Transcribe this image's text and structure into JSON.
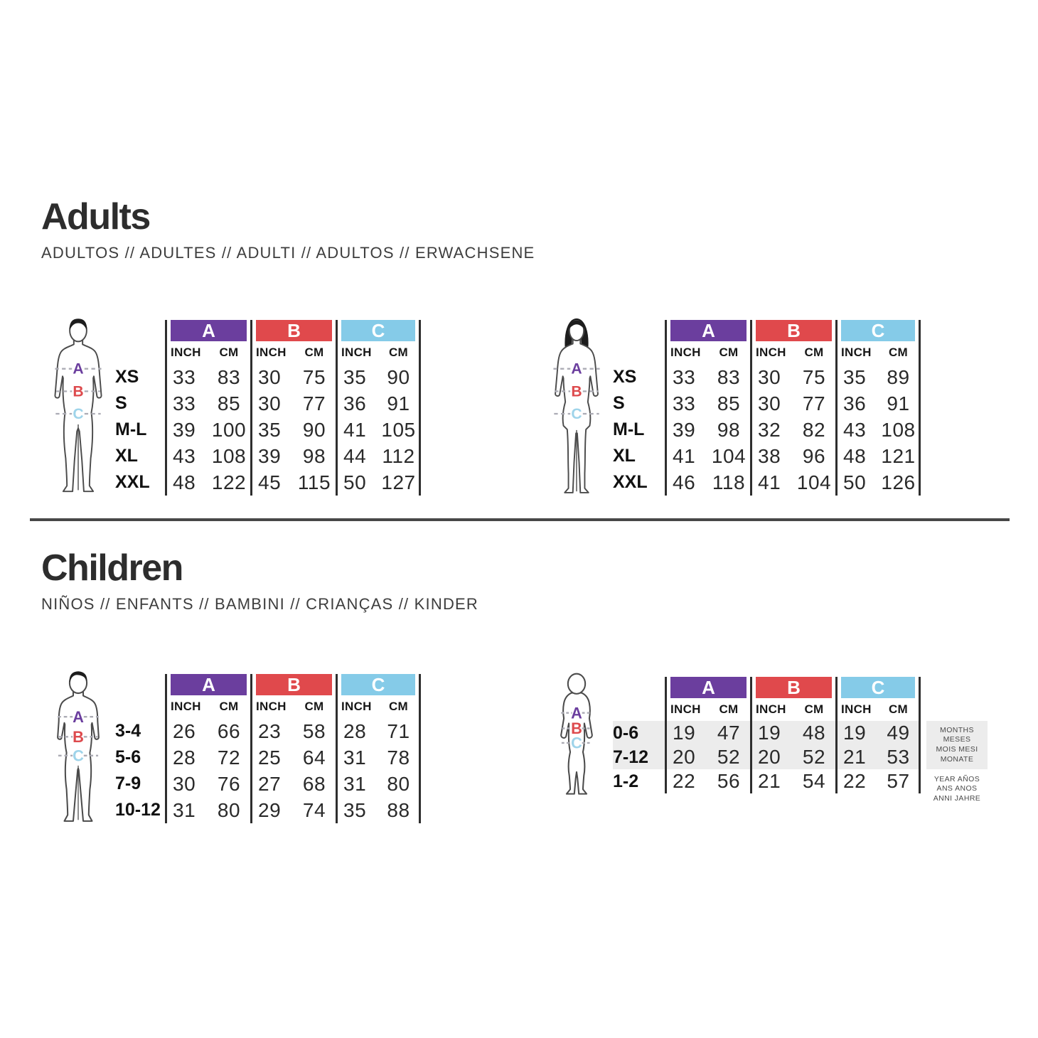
{
  "adults": {
    "title": "Adults",
    "subtitle": "ADULTOS // ADULTES // ADULTI // ADULTOS // ERWACHSENE",
    "tables": {
      "men": {
        "figure": "man",
        "rows": [
          {
            "size": "XS",
            "values": [
              "33",
              "83",
              "30",
              "75",
              "35",
              "90"
            ]
          },
          {
            "size": "S",
            "values": [
              "33",
              "85",
              "30",
              "77",
              "36",
              "91"
            ]
          },
          {
            "size": "M-L",
            "values": [
              "39",
              "100",
              "35",
              "90",
              "41",
              "105"
            ]
          },
          {
            "size": "XL",
            "values": [
              "43",
              "108",
              "39",
              "98",
              "44",
              "112"
            ]
          },
          {
            "size": "XXL",
            "values": [
              "48",
              "122",
              "45",
              "115",
              "50",
              "127"
            ]
          }
        ]
      },
      "women": {
        "figure": "woman",
        "rows": [
          {
            "size": "XS",
            "values": [
              "33",
              "83",
              "30",
              "75",
              "35",
              "89"
            ]
          },
          {
            "size": "S",
            "values": [
              "33",
              "85",
              "30",
              "77",
              "36",
              "91"
            ]
          },
          {
            "size": "M-L",
            "values": [
              "39",
              "98",
              "32",
              "82",
              "43",
              "108"
            ]
          },
          {
            "size": "XL",
            "values": [
              "41",
              "104",
              "38",
              "96",
              "48",
              "121"
            ]
          },
          {
            "size": "XXL",
            "values": [
              "46",
              "118",
              "41",
              "104",
              "50",
              "126"
            ]
          }
        ]
      }
    }
  },
  "children": {
    "title": "Children",
    "subtitle": "NIÑOS // ENFANTS // BAMBINI // CRIANÇAS // KINDER",
    "tables": {
      "child": {
        "figure": "child",
        "rows": [
          {
            "size": "3-4",
            "values": [
              "26",
              "66",
              "23",
              "58",
              "28",
              "71"
            ]
          },
          {
            "size": "5-6",
            "values": [
              "28",
              "72",
              "25",
              "64",
              "31",
              "78"
            ]
          },
          {
            "size": "7-9",
            "values": [
              "30",
              "76",
              "27",
              "68",
              "31",
              "80"
            ]
          },
          {
            "size": "10-12",
            "values": [
              "31",
              "80",
              "29",
              "74",
              "35",
              "88"
            ]
          }
        ]
      },
      "baby": {
        "figure": "baby",
        "rows": [
          {
            "size": "0-6",
            "values": [
              "19",
              "47",
              "19",
              "48",
              "19",
              "49"
            ],
            "highlight": true
          },
          {
            "size": "7-12",
            "values": [
              "20",
              "52",
              "20",
              "52",
              "21",
              "53"
            ],
            "highlight": true
          },
          {
            "size": "1-2",
            "values": [
              "22",
              "56",
              "21",
              "54",
              "22",
              "57"
            ],
            "highlight": false
          }
        ],
        "notes": {
          "months": [
            "MONTHS",
            "MESES",
            "MOIS MESI",
            "MONATE"
          ],
          "years": [
            "YEAR AÑOS",
            "ANS ANOS",
            "ANNI JAHRE"
          ]
        }
      }
    }
  },
  "columns": [
    {
      "key": "a",
      "label": "A",
      "color": "#6b3e9e"
    },
    {
      "key": "b",
      "label": "B",
      "color": "#e0494c"
    },
    {
      "key": "c",
      "label": "C",
      "color": "#85cbe8"
    }
  ],
  "units": {
    "inch": "INCH",
    "cm": "CM"
  },
  "highlight_color": "#ececec"
}
